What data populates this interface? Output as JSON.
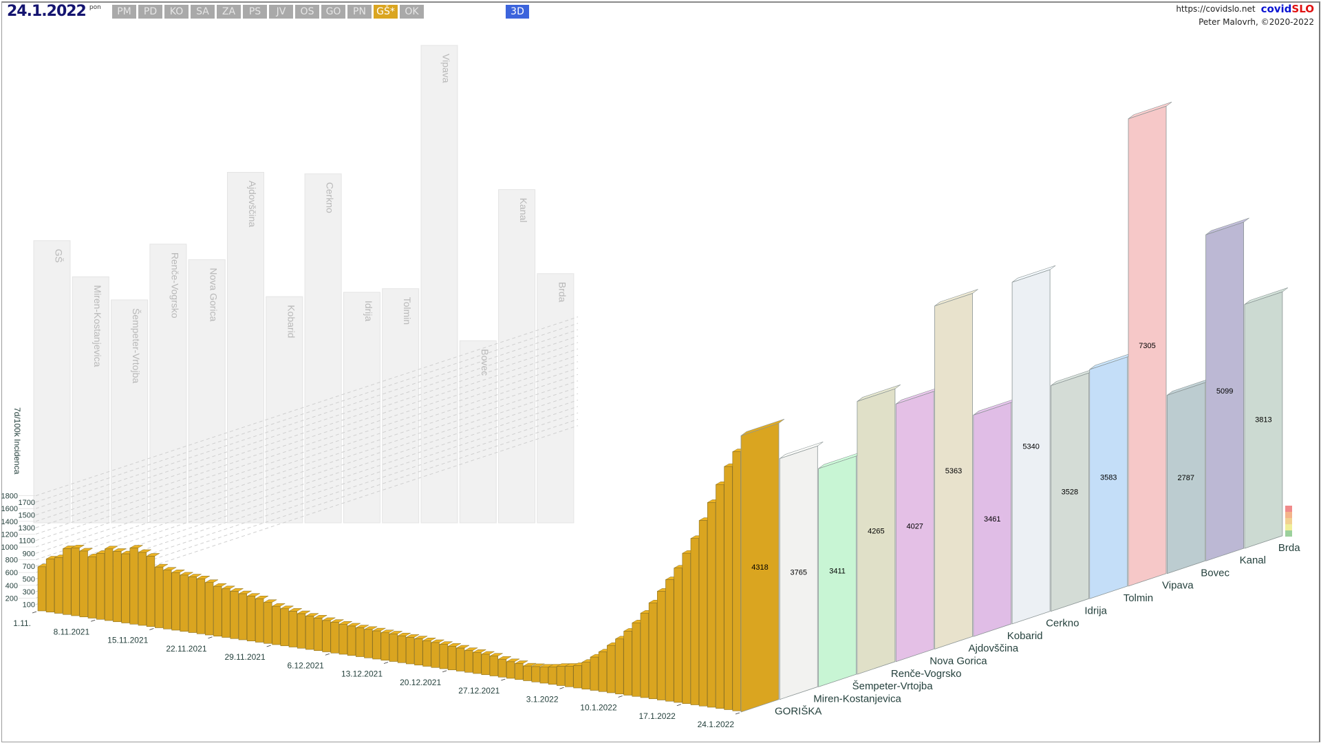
{
  "header": {
    "date": "24.1.2022",
    "day_of_week": "pon",
    "region_buttons": [
      "PM",
      "PD",
      "KO",
      "SA",
      "ZA",
      "PS",
      "JV",
      "OS",
      "GO",
      "PN",
      "GŠ*",
      "OK"
    ],
    "active_button": "GŠ*",
    "view_button": "3D",
    "url": "https://covidslo.net",
    "brand_part1": "covid",
    "brand_part2": "SLO",
    "author": "Peter Malovrh, ©2020-2022"
  },
  "chart_data": {
    "type": "bar",
    "subtype": "3d-bar",
    "ylabel": "7d/100k Incidenca",
    "yticks": [
      100,
      200,
      300,
      400,
      500,
      600,
      700,
      800,
      900,
      1000,
      1100,
      1200,
      1300,
      1400,
      1500,
      1600,
      1700,
      1800
    ],
    "grid": true,
    "x_tick_labels": [
      "1.11.",
      "8.11.2021",
      "15.11.2021",
      "22.11.2021",
      "29.11.2021",
      "6.12.2021",
      "13.12.2021",
      "20.12.2021",
      "27.12.2021",
      "3.1.2022",
      "10.1.2022",
      "17.1.2022",
      "24.1.2022"
    ],
    "date_range": [
      "1.11.2021",
      "24.1.2022"
    ],
    "front_series": {
      "name": "GORIŠKA",
      "color": "#DAA520",
      "values": [
        690,
        830,
        870,
        1030,
        1060,
        1030,
        960,
        1030,
        1120,
        1100,
        1080,
        1190,
        1140,
        1100,
        950,
        920,
        900,
        880,
        870,
        860,
        820,
        780,
        760,
        740,
        720,
        700,
        680,
        640,
        600,
        580,
        560,
        540,
        520,
        510,
        490,
        480,
        470,
        460,
        450,
        445,
        440,
        430,
        430,
        420,
        415,
        410,
        400,
        390,
        380,
        370,
        360,
        340,
        330,
        320,
        310,
        280,
        260,
        250,
        230,
        240,
        250,
        270,
        300,
        320,
        350,
        420,
        520,
        620,
        740,
        860,
        1000,
        1150,
        1320,
        1500,
        1700,
        1900,
        2100,
        2350,
        2600,
        2900,
        3200,
        3500,
        3800,
        4050,
        4318
      ]
    },
    "wall_labels": [
      "GŠ",
      "Miren-Kostanjevica",
      "Šempeter-Vrtojba",
      "Renče-Vogrsko",
      "Nova Gorica",
      "Ajdovščina",
      "Kobarid",
      "Cerkno",
      "Idrija",
      "Tolmin",
      "Vipava",
      "Bovec",
      "Kanal",
      "Brda"
    ],
    "regions": [
      {
        "name": "GORIŠKA",
        "value": 4318,
        "color": "#DAA520"
      },
      {
        "name": "Miren-Kostanjevica",
        "value": 3765,
        "color": "#F2F2F0"
      },
      {
        "name": "Šempeter-Vrtojba",
        "value": 3411,
        "color": "#C8F5D4"
      },
      {
        "name": "Renče-Vogrsko",
        "value": 4265,
        "color": "#E0E0C8"
      },
      {
        "name": "Nova Gorica",
        "value": 4027,
        "color": "#E4C0E6"
      },
      {
        "name": "Ajdovščina",
        "value": 5363,
        "color": "#E8E2CC"
      },
      {
        "name": "Kobarid",
        "value": 3461,
        "color": "#E0BDE6"
      },
      {
        "name": "Cerkno",
        "value": 5340,
        "color": "#ECF0F4"
      },
      {
        "name": "Idrija",
        "value": 3528,
        "color": "#D4DCD6"
      },
      {
        "name": "Tolmin",
        "value": 3583,
        "color": "#C4DEF8"
      },
      {
        "name": "Vipava",
        "value": 7305,
        "color": "#F6C8C8"
      },
      {
        "name": "Bovec",
        "value": 2787,
        "color": "#BCCCD0"
      },
      {
        "name": "Kanal",
        "value": 5099,
        "color": "#BCB8D4"
      },
      {
        "name": "Brda",
        "value": 3813,
        "color": "#CCDAD2"
      }
    ],
    "legend_colors": [
      "#f08a8a",
      "#f4b48a",
      "#f2d090",
      "#f0ee98",
      "#9cd09c"
    ]
  }
}
